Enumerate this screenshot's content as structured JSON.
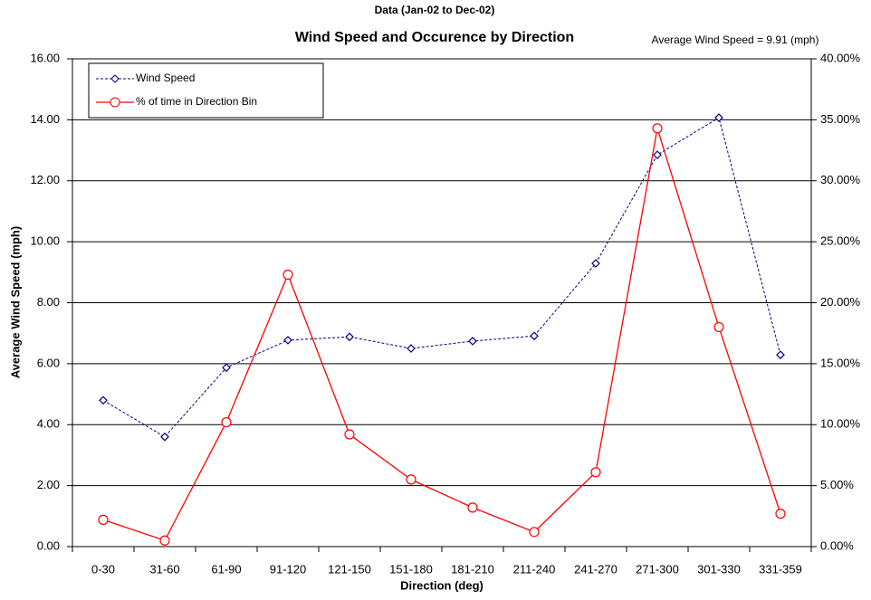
{
  "chart_data": {
    "type": "line",
    "subtitle": "Data (Jan-02  to  Dec-02)",
    "title": "Wind Speed and Occurence by Direction",
    "annotation": "Average Wind Speed = 9.91 (mph)",
    "x_label": "Direction (deg)",
    "y_label": "Average Wind Speed (mph)",
    "categories": [
      "0-30",
      "31-60",
      "61-90",
      "91-120",
      "121-150",
      "151-180",
      "181-210",
      "211-240",
      "241-270",
      "271-300",
      "301-330",
      "331-359"
    ],
    "series": [
      {
        "name": "Wind Speed",
        "color": "#000080",
        "values": [
          4.8,
          3.6,
          5.87,
          6.77,
          6.88,
          6.5,
          6.74,
          6.91,
          9.29,
          12.85,
          14.07,
          6.29
        ]
      },
      {
        "name": "% of time in Direction Bin",
        "color": "#ff0000",
        "axis": "y2",
        "values": [
          2.2,
          0.5,
          10.2,
          22.3,
          9.2,
          5.5,
          3.2,
          1.2,
          6.1,
          34.3,
          18.0,
          2.7
        ]
      }
    ],
    "ylim": [
      0,
      16
    ],
    "yticks": [
      {
        "value": 0,
        "label": "0.00"
      },
      {
        "value": 2,
        "label": "2.00"
      },
      {
        "value": 4,
        "label": "4.00"
      },
      {
        "value": 6,
        "label": "6.00"
      },
      {
        "value": 8,
        "label": "8.00"
      },
      {
        "value": 10,
        "label": "10.00"
      },
      {
        "value": 12,
        "label": "12.00"
      },
      {
        "value": 14,
        "label": "14.00"
      },
      {
        "value": 16,
        "label": "16.00"
      }
    ],
    "y2lim": [
      0,
      40
    ],
    "y2ticks": [
      {
        "value": 0,
        "label": "0.00%"
      },
      {
        "value": 5,
        "label": "5.00%"
      },
      {
        "value": 10,
        "label": "10.00%"
      },
      {
        "value": 15,
        "label": "15.00%"
      },
      {
        "value": 20,
        "label": "20.00%"
      },
      {
        "value": 25,
        "label": "25.00%"
      },
      {
        "value": 30,
        "label": "30.00%"
      },
      {
        "value": 35,
        "label": "35.00%"
      },
      {
        "value": 40,
        "label": "40.00%"
      }
    ],
    "grid": true,
    "legend": "top-left"
  }
}
